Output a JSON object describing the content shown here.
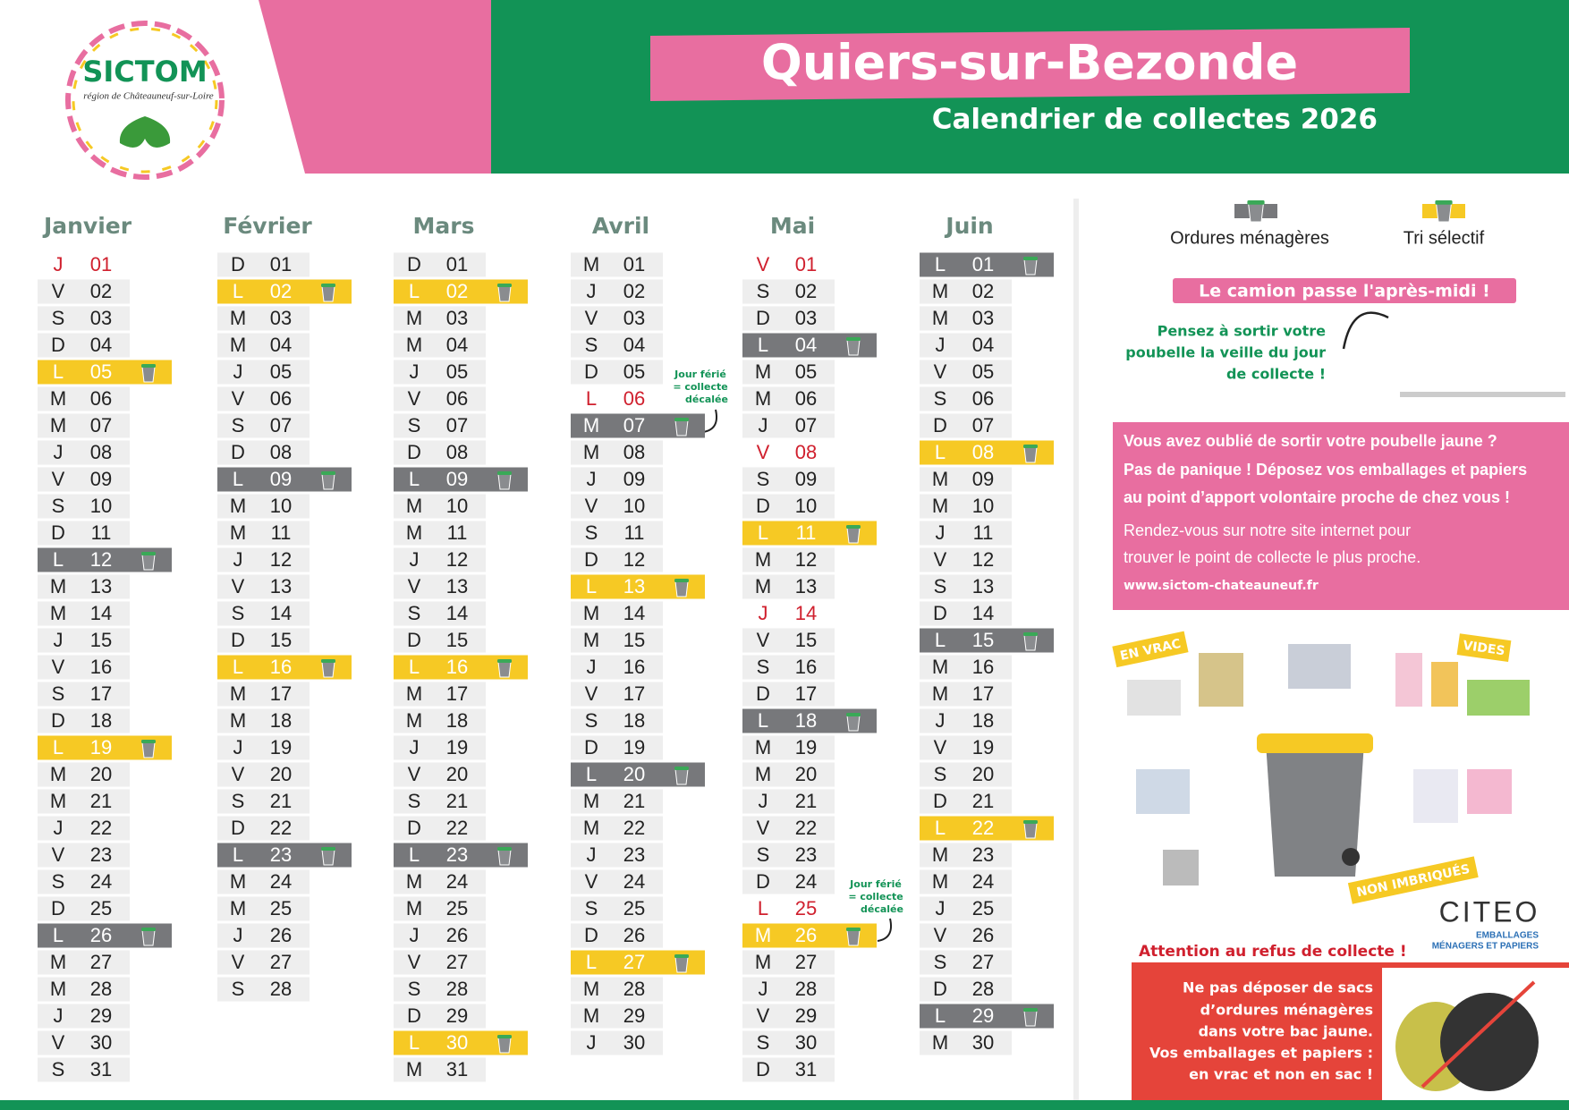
{
  "header": {
    "logo": "SICTOM",
    "logo_sub": "région de Châteauneuf-sur-Loire",
    "title": "Quiers-sur-Bezonde",
    "subtitle": "Calendrier de collectes 2026"
  },
  "legend": {
    "ordures": "Ordures ménagères",
    "tri": "Tri sélectif"
  },
  "colors": {
    "ordures": "#77787b",
    "tri": "#f6c924",
    "ferie": "#d0202e"
  },
  "months": [
    {
      "name": "Janvier",
      "days": [
        [
          "J",
          "01",
          "ferie"
        ],
        [
          "V",
          "02"
        ],
        [
          "S",
          "03"
        ],
        [
          "D",
          "04"
        ],
        [
          "L",
          "05",
          "tri"
        ],
        [
          "M",
          "06"
        ],
        [
          "M",
          "07"
        ],
        [
          "J",
          "08"
        ],
        [
          "V",
          "09"
        ],
        [
          "S",
          "10"
        ],
        [
          "D",
          "11"
        ],
        [
          "L",
          "12",
          "ordures"
        ],
        [
          "M",
          "13"
        ],
        [
          "M",
          "14"
        ],
        [
          "J",
          "15"
        ],
        [
          "V",
          "16"
        ],
        [
          "S",
          "17"
        ],
        [
          "D",
          "18"
        ],
        [
          "L",
          "19",
          "tri"
        ],
        [
          "M",
          "20"
        ],
        [
          "M",
          "21"
        ],
        [
          "J",
          "22"
        ],
        [
          "V",
          "23"
        ],
        [
          "S",
          "24"
        ],
        [
          "D",
          "25"
        ],
        [
          "L",
          "26",
          "ordures"
        ],
        [
          "M",
          "27"
        ],
        [
          "M",
          "28"
        ],
        [
          "J",
          "29"
        ],
        [
          "V",
          "30"
        ],
        [
          "S",
          "31"
        ]
      ]
    },
    {
      "name": "Février",
      "days": [
        [
          "D",
          "01"
        ],
        [
          "L",
          "02",
          "tri"
        ],
        [
          "M",
          "03"
        ],
        [
          "M",
          "04"
        ],
        [
          "J",
          "05"
        ],
        [
          "V",
          "06"
        ],
        [
          "S",
          "07"
        ],
        [
          "D",
          "08"
        ],
        [
          "L",
          "09",
          "ordures"
        ],
        [
          "M",
          "10"
        ],
        [
          "M",
          "11"
        ],
        [
          "J",
          "12"
        ],
        [
          "V",
          "13"
        ],
        [
          "S",
          "14"
        ],
        [
          "D",
          "15"
        ],
        [
          "L",
          "16",
          "tri"
        ],
        [
          "M",
          "17"
        ],
        [
          "M",
          "18"
        ],
        [
          "J",
          "19"
        ],
        [
          "V",
          "20"
        ],
        [
          "S",
          "21"
        ],
        [
          "D",
          "22"
        ],
        [
          "L",
          "23",
          "ordures"
        ],
        [
          "M",
          "24"
        ],
        [
          "M",
          "25"
        ],
        [
          "J",
          "26"
        ],
        [
          "V",
          "27"
        ],
        [
          "S",
          "28"
        ]
      ]
    },
    {
      "name": "Mars",
      "days": [
        [
          "D",
          "01"
        ],
        [
          "L",
          "02",
          "tri"
        ],
        [
          "M",
          "03"
        ],
        [
          "M",
          "04"
        ],
        [
          "J",
          "05"
        ],
        [
          "V",
          "06"
        ],
        [
          "S",
          "07"
        ],
        [
          "D",
          "08"
        ],
        [
          "L",
          "09",
          "ordures"
        ],
        [
          "M",
          "10"
        ],
        [
          "M",
          "11"
        ],
        [
          "J",
          "12"
        ],
        [
          "V",
          "13"
        ],
        [
          "S",
          "14"
        ],
        [
          "D",
          "15"
        ],
        [
          "L",
          "16",
          "tri"
        ],
        [
          "M",
          "17"
        ],
        [
          "M",
          "18"
        ],
        [
          "J",
          "19"
        ],
        [
          "V",
          "20"
        ],
        [
          "S",
          "21"
        ],
        [
          "D",
          "22"
        ],
        [
          "L",
          "23",
          "ordures"
        ],
        [
          "M",
          "24"
        ],
        [
          "M",
          "25"
        ],
        [
          "J",
          "26"
        ],
        [
          "V",
          "27"
        ],
        [
          "S",
          "28"
        ],
        [
          "D",
          "29"
        ],
        [
          "L",
          "30",
          "tri"
        ],
        [
          "M",
          "31"
        ]
      ]
    },
    {
      "name": "Avril",
      "days": [
        [
          "M",
          "01"
        ],
        [
          "J",
          "02"
        ],
        [
          "V",
          "03"
        ],
        [
          "S",
          "04"
        ],
        [
          "D",
          "05"
        ],
        [
          "L",
          "06",
          "ferie"
        ],
        [
          "M",
          "07",
          "ordures"
        ],
        [
          "M",
          "08"
        ],
        [
          "J",
          "09"
        ],
        [
          "V",
          "10"
        ],
        [
          "S",
          "11"
        ],
        [
          "D",
          "12"
        ],
        [
          "L",
          "13",
          "tri"
        ],
        [
          "M",
          "14"
        ],
        [
          "M",
          "15"
        ],
        [
          "J",
          "16"
        ],
        [
          "V",
          "17"
        ],
        [
          "S",
          "18"
        ],
        [
          "D",
          "19"
        ],
        [
          "L",
          "20",
          "ordures"
        ],
        [
          "M",
          "21"
        ],
        [
          "M",
          "22"
        ],
        [
          "J",
          "23"
        ],
        [
          "V",
          "24"
        ],
        [
          "S",
          "25"
        ],
        [
          "D",
          "26"
        ],
        [
          "L",
          "27",
          "tri"
        ],
        [
          "M",
          "28"
        ],
        [
          "M",
          "29"
        ],
        [
          "J",
          "30"
        ]
      ]
    },
    {
      "name": "Mai",
      "days": [
        [
          "V",
          "01",
          "ferie"
        ],
        [
          "S",
          "02"
        ],
        [
          "D",
          "03"
        ],
        [
          "L",
          "04",
          "ordures"
        ],
        [
          "M",
          "05"
        ],
        [
          "M",
          "06"
        ],
        [
          "J",
          "07"
        ],
        [
          "V",
          "08",
          "ferie"
        ],
        [
          "S",
          "09"
        ],
        [
          "D",
          "10"
        ],
        [
          "L",
          "11",
          "tri"
        ],
        [
          "M",
          "12"
        ],
        [
          "M",
          "13"
        ],
        [
          "J",
          "14",
          "ferie"
        ],
        [
          "V",
          "15"
        ],
        [
          "S",
          "16"
        ],
        [
          "D",
          "17"
        ],
        [
          "L",
          "18",
          "ordures"
        ],
        [
          "M",
          "19"
        ],
        [
          "M",
          "20"
        ],
        [
          "J",
          "21"
        ],
        [
          "V",
          "22"
        ],
        [
          "S",
          "23"
        ],
        [
          "D",
          "24"
        ],
        [
          "L",
          "25",
          "ferie"
        ],
        [
          "M",
          "26",
          "tri"
        ],
        [
          "M",
          "27"
        ],
        [
          "J",
          "28"
        ],
        [
          "V",
          "29"
        ],
        [
          "S",
          "30"
        ],
        [
          "D",
          "31"
        ]
      ]
    },
    {
      "name": "Juin",
      "days": [
        [
          "L",
          "01",
          "ordures"
        ],
        [
          "M",
          "02"
        ],
        [
          "M",
          "03"
        ],
        [
          "J",
          "04"
        ],
        [
          "V",
          "05"
        ],
        [
          "S",
          "06"
        ],
        [
          "D",
          "07"
        ],
        [
          "L",
          "08",
          "tri"
        ],
        [
          "M",
          "09"
        ],
        [
          "M",
          "10"
        ],
        [
          "J",
          "11"
        ],
        [
          "V",
          "12"
        ],
        [
          "S",
          "13"
        ],
        [
          "D",
          "14"
        ],
        [
          "L",
          "15",
          "ordures"
        ],
        [
          "M",
          "16"
        ],
        [
          "M",
          "17"
        ],
        [
          "J",
          "18"
        ],
        [
          "V",
          "19"
        ],
        [
          "S",
          "20"
        ],
        [
          "D",
          "21"
        ],
        [
          "L",
          "22",
          "tri"
        ],
        [
          "M",
          "23"
        ],
        [
          "M",
          "24"
        ],
        [
          "J",
          "25"
        ],
        [
          "V",
          "26"
        ],
        [
          "S",
          "27"
        ],
        [
          "D",
          "28"
        ],
        [
          "L",
          "29",
          "ordures"
        ],
        [
          "M",
          "30"
        ]
      ]
    }
  ],
  "notes": [
    [
      "Jour férié",
      "= collecte",
      "décalée"
    ],
    [
      "Jour férié",
      "= collecte",
      "décalée"
    ]
  ],
  "banner": "Le camion passe l'après-midi !",
  "reminder": [
    "Pensez à sortir votre",
    "poubelle la veille du jour",
    "de collecte !"
  ],
  "info": [
    "Vous avez oublié de sortir votre poubelle jaune ?",
    "Pas de panique ! Déposez vos emballages et papiers",
    "au point d’apport volontaire proche de chez vous !",
    "Rendez-vous sur notre site internet pour",
    "trouver le point de collecte le plus proche.",
    "www.sictom-chateauneuf.fr"
  ],
  "sorting": {
    "bulk": "EN VRAC",
    "empty": "VIDES",
    "not_nested": "NON IMBRIQUÉS"
  },
  "citeo": {
    "brand": "CITEO",
    "line1": "EMBALLAGES",
    "line2": "MÉNAGERS ET PAPIERS"
  },
  "warning": {
    "title": "Attention au refus de collecte !",
    "lines": [
      "Ne pas déposer de sacs",
      "d’ordures ménagères",
      "dans votre bac jaune.",
      "Vos emballages et papiers :",
      "en vrac et non en sac !"
    ]
  }
}
